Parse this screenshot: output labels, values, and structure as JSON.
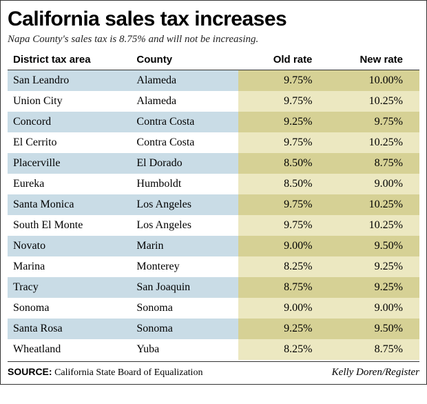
{
  "title": "California sales tax increases",
  "subtitle": "Napa County's sales tax is 8.75% and will not be increasing.",
  "columns": [
    "District tax area",
    "County",
    "Old rate",
    "New rate"
  ],
  "column_widths_pct": [
    30,
    26,
    22,
    22
  ],
  "column_align": [
    "left",
    "left",
    "right",
    "right"
  ],
  "rate_columns": [
    2,
    3
  ],
  "rows": [
    {
      "district": "San Leandro",
      "county": "Alameda",
      "old": "9.75%",
      "new": "10.00%"
    },
    {
      "district": "Union City",
      "county": "Alameda",
      "old": "9.75%",
      "new": "10.25%"
    },
    {
      "district": "Concord",
      "county": "Contra Costa",
      "old": "9.25%",
      "new": "9.75%"
    },
    {
      "district": "El Cerrito",
      "county": "Contra Costa",
      "old": "9.75%",
      "new": "10.25%"
    },
    {
      "district": "Placerville",
      "county": "El Dorado",
      "old": "8.50%",
      "new": "8.75%"
    },
    {
      "district": "Eureka",
      "county": "Humboldt",
      "old": "8.50%",
      "new": "9.00%"
    },
    {
      "district": "Santa Monica",
      "county": "Los Angeles",
      "old": "9.75%",
      "new": "10.25%"
    },
    {
      "district": "South El Monte",
      "county": "Los Angeles",
      "old": "9.75%",
      "new": "10.25%"
    },
    {
      "district": "Novato",
      "county": "Marin",
      "old": "9.00%",
      "new": "9.50%"
    },
    {
      "district": "Marina",
      "county": "Monterey",
      "old": "8.25%",
      "new": "9.25%"
    },
    {
      "district": "Tracy",
      "county": "San Joaquin",
      "old": "8.75%",
      "new": "9.25%"
    },
    {
      "district": "Sonoma",
      "county": "Sonoma",
      "old": "9.00%",
      "new": "9.00%"
    },
    {
      "district": "Santa Rosa",
      "county": "Sonoma",
      "old": "9.25%",
      "new": "9.50%"
    },
    {
      "district": "Wheatland",
      "county": "Yuba",
      "old": "8.25%",
      "new": "8.75%"
    }
  ],
  "source_label": "SOURCE:",
  "source_text": "California State Board of Equalization",
  "credit": "Kelly Doren/Register",
  "styling": {
    "type": "table",
    "title_fontsize_pt": 30,
    "title_font": "Arial Black",
    "subtitle_fontsize_pt": 15,
    "subtitle_style": "italic",
    "body_font": "Georgia",
    "body_fontsize_pt": 16,
    "header_fontsize_pt": 15,
    "header_font": "Arial Bold",
    "row_band_even_bg": "#c9dce6",
    "row_band_odd_bg": "#ffffff",
    "rate_col_band_even_bg": "#d6d195",
    "rate_col_band_odd_bg": "#ece8c1",
    "rule_color": "#333333",
    "background_color": "#ffffff",
    "container_border": "1px solid #333333",
    "footer_fontsize_pt": 14,
    "credit_style": "italic"
  }
}
